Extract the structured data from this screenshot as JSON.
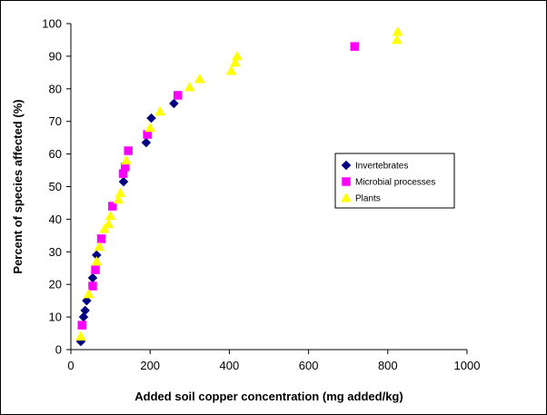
{
  "chart_data": {
    "type": "scatter",
    "xlabel": "Added soil copper concentration (mg added/kg)",
    "ylabel": "Percent of species affected (%)",
    "xlim": [
      0,
      1000
    ],
    "ylim": [
      0,
      100
    ],
    "x_ticks": [
      0,
      200,
      400,
      600,
      800,
      1000
    ],
    "y_ticks": [
      0,
      10,
      20,
      30,
      40,
      50,
      60,
      70,
      80,
      90,
      100
    ],
    "grid": false,
    "legend_position": "right-middle",
    "series": [
      {
        "name": "Invertebrates",
        "marker": "diamond",
        "color": "#000080",
        "points": [
          [
            25,
            2.5
          ],
          [
            32,
            10
          ],
          [
            36,
            12
          ],
          [
            40,
            15
          ],
          [
            55,
            22
          ],
          [
            65,
            29
          ],
          [
            133,
            51.5
          ],
          [
            190,
            63.5
          ],
          [
            203,
            71
          ],
          [
            260,
            75.5
          ]
        ]
      },
      {
        "name": "Microbial processes",
        "marker": "square",
        "color": "#ff00ff",
        "points": [
          [
            28,
            7.5
          ],
          [
            55,
            19.5
          ],
          [
            62,
            24.5
          ],
          [
            77,
            34
          ],
          [
            105,
            44
          ],
          [
            132,
            54
          ],
          [
            137,
            56
          ],
          [
            145,
            61
          ],
          [
            193,
            66
          ],
          [
            270,
            78
          ],
          [
            716,
            93
          ]
        ]
      },
      {
        "name": "Plants",
        "marker": "triangle",
        "color": "#ffff00",
        "points": [
          [
            25,
            4
          ],
          [
            45,
            17
          ],
          [
            65,
            27
          ],
          [
            72,
            31.5
          ],
          [
            85,
            37
          ],
          [
            95,
            38.5
          ],
          [
            100,
            41
          ],
          [
            120,
            46
          ],
          [
            125,
            48
          ],
          [
            140,
            58
          ],
          [
            200,
            68
          ],
          [
            225,
            73
          ],
          [
            300,
            80.5
          ],
          [
            325,
            83
          ],
          [
            405,
            85.5
          ],
          [
            415,
            88
          ],
          [
            420,
            90
          ],
          [
            823,
            95
          ],
          [
            825,
            97.5
          ]
        ]
      }
    ]
  }
}
